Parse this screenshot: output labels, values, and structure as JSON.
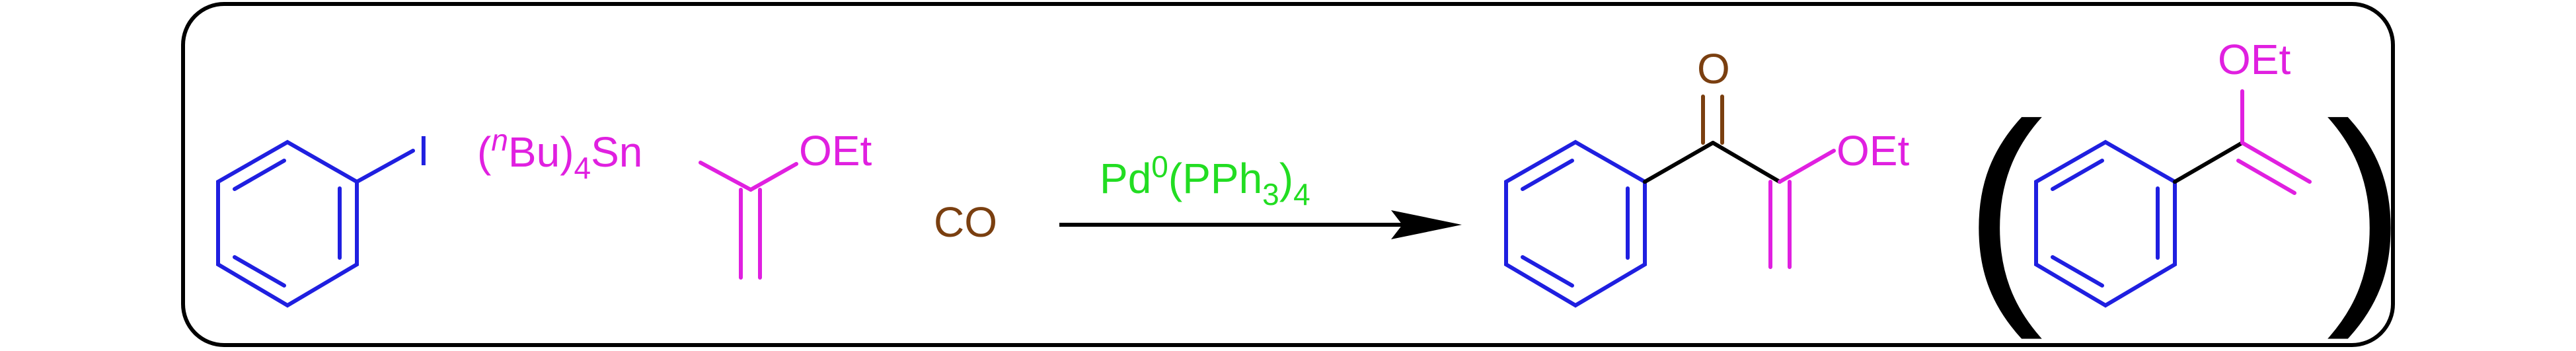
{
  "colors": {
    "frame": "#000000",
    "ring": "#1f1fe0",
    "reagent": "#e020e0",
    "carbonyl": "#7a3f10",
    "catalyst": "#22dd22",
    "bond": "#000000"
  },
  "reactant_aryl_iodide": {
    "substituent": "I"
  },
  "reactant_stannane": {
    "prefix_open": "(",
    "prefix_sup": "n",
    "prefix_bu": "Bu)",
    "prefix_sub": "4",
    "prefix_sn": "Sn",
    "group": "OEt"
  },
  "reactant_co": {
    "label": "CO"
  },
  "arrow": {
    "catalyst_pd": "Pd",
    "catalyst_pd_sup": "0",
    "catalyst_pph": "(PPh",
    "catalyst_pph_sub": "3",
    "catalyst_close": ")",
    "catalyst_close_sub": "4"
  },
  "product_main": {
    "oxygen": "O",
    "group": "OEt"
  },
  "product_side": {
    "open_paren": "(",
    "group": "OEt",
    "close_paren": ")"
  }
}
